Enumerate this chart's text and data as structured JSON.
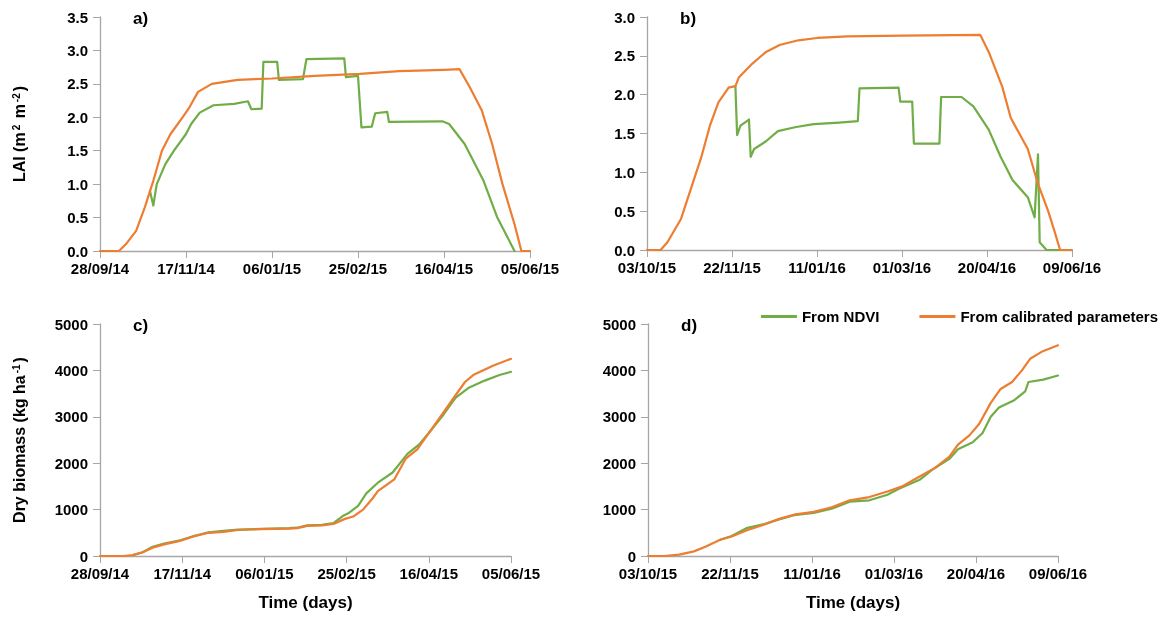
{
  "chart_data": [
    {
      "type": "line",
      "title": "a)",
      "ylabel": "LAI (m$^{2}$ m$^{-2}$)",
      "legend": false,
      "xlim": [
        "2014-09-28",
        "2015-06-05"
      ],
      "xticks": [
        {
          "value": "2014-09-28",
          "label": "28/09/14"
        },
        {
          "value": "2014-11-17",
          "label": "17/11/14"
        },
        {
          "value": "2015-01-06",
          "label": "06/01/15"
        },
        {
          "value": "2015-02-25",
          "label": "25/02/15"
        },
        {
          "value": "2015-04-16",
          "label": "16/04/15"
        },
        {
          "value": "2015-06-05",
          "label": "05/06/15"
        }
      ],
      "ylim": [
        0,
        3.5
      ],
      "yticks": [
        {
          "value": 0,
          "label": "0.0"
        },
        {
          "value": 0.5,
          "label": "0.5"
        },
        {
          "value": 1,
          "label": "1.0"
        },
        {
          "value": 1.5,
          "label": "1.5"
        },
        {
          "value": 2,
          "label": "2.0"
        },
        {
          "value": 2.5,
          "label": "2.5"
        },
        {
          "value": 3,
          "label": "3.0"
        },
        {
          "value": 3.5,
          "label": "3.5"
        }
      ],
      "series": [
        {
          "color": "#70ad47",
          "x": [
            "2014-10-27",
            "2014-10-29",
            "2014-10-31",
            "2014-11-05",
            "2014-11-10",
            "2014-11-17",
            "2014-11-20",
            "2014-11-25",
            "2014-12-03",
            "2014-12-15",
            "2014-12-23",
            "2014-12-25",
            "2014-12-31",
            "2015-01-01",
            "2015-01-09",
            "2015-01-10",
            "2015-01-24",
            "2015-01-26",
            "2015-02-17",
            "2015-02-18",
            "2015-02-25",
            "2015-02-27",
            "2015-03-05",
            "2015-03-07",
            "2015-03-14",
            "2015-03-15",
            "2015-04-15",
            "2015-04-19",
            "2015-04-28",
            "2015-05-09",
            "2015-05-17",
            "2015-05-27"
          ],
          "values": [
            0.9,
            0.68,
            1.0,
            1.3,
            1.5,
            1.75,
            1.9,
            2.07,
            2.18,
            2.2,
            2.24,
            2.12,
            2.13,
            2.83,
            2.83,
            2.56,
            2.57,
            2.87,
            2.88,
            2.6,
            2.62,
            1.85,
            1.86,
            2.06,
            2.08,
            1.93,
            1.94,
            1.9,
            1.6,
            1.05,
            0.5,
            0
          ]
        },
        {
          "color": "#ed7d31",
          "x": [
            "2014-09-28",
            "2014-10-09",
            "2014-10-13",
            "2014-10-19",
            "2014-10-24",
            "2014-10-29",
            "2014-11-03",
            "2014-11-08",
            "2014-11-15",
            "2014-11-19",
            "2014-11-24",
            "2014-12-02",
            "2014-12-17",
            "2015-01-06",
            "2015-01-31",
            "2015-02-26",
            "2015-03-21",
            "2015-04-16",
            "2015-04-25",
            "2015-05-01",
            "2015-05-08",
            "2015-05-14",
            "2015-05-20",
            "2015-05-27",
            "2015-05-31",
            "2015-06-05"
          ],
          "values": [
            0,
            0,
            0.1,
            0.3,
            0.65,
            1.05,
            1.5,
            1.75,
            2.0,
            2.15,
            2.38,
            2.5,
            2.56,
            2.58,
            2.62,
            2.65,
            2.69,
            2.71,
            2.72,
            2.45,
            2.1,
            1.6,
            1.0,
            0.4,
            0,
            0
          ]
        }
      ]
    },
    {
      "type": "line",
      "title": "b)",
      "legend": false,
      "xlim": [
        "2015-10-03",
        "2016-06-09"
      ],
      "xticks": [
        {
          "value": "2015-10-03",
          "label": "03/10/15"
        },
        {
          "value": "2015-11-22",
          "label": "22/11/15"
        },
        {
          "value": "2016-01-11",
          "label": "11/01/16"
        },
        {
          "value": "2016-03-01",
          "label": "01/03/16"
        },
        {
          "value": "2016-04-20",
          "label": "20/04/16"
        },
        {
          "value": "2016-06-09",
          "label": "09/06/16"
        }
      ],
      "ylim": [
        0,
        3
      ],
      "yticks": [
        {
          "value": 0,
          "label": "0.0"
        },
        {
          "value": 0.5,
          "label": "0.5"
        },
        {
          "value": 1,
          "label": "1.0"
        },
        {
          "value": 1.5,
          "label": "1.5"
        },
        {
          "value": 2,
          "label": "2.0"
        },
        {
          "value": 2.5,
          "label": "2.5"
        },
        {
          "value": 3,
          "label": "3.0"
        }
      ],
      "series": [
        {
          "color": "#70ad47",
          "x": [
            "2015-11-24",
            "2015-11-25",
            "2015-11-27",
            "2015-12-02",
            "2015-12-03",
            "2015-12-05",
            "2015-12-12",
            "2015-12-19",
            "2015-12-29",
            "2016-01-09",
            "2016-01-24",
            "2016-02-04",
            "2016-02-05",
            "2016-02-28",
            "2016-02-29",
            "2016-03-07",
            "2016-03-08",
            "2016-03-23",
            "2016-03-24",
            "2016-04-05",
            "2016-04-12",
            "2016-04-21",
            "2016-04-28",
            "2016-05-05",
            "2016-05-14",
            "2016-05-18",
            "2016-05-20",
            "2016-05-21",
            "2016-05-25",
            "2016-06-01"
          ],
          "values": [
            2.11,
            1.48,
            1.6,
            1.68,
            1.2,
            1.3,
            1.4,
            1.53,
            1.58,
            1.62,
            1.64,
            1.66,
            2.08,
            2.09,
            1.91,
            1.91,
            1.37,
            1.37,
            1.97,
            1.97,
            1.85,
            1.55,
            1.2,
            0.9,
            0.68,
            0.42,
            1.23,
            0.1,
            0,
            0
          ]
        },
        {
          "color": "#ed7d31",
          "x": [
            "2015-10-03",
            "2015-10-11",
            "2015-10-15",
            "2015-10-23",
            "2015-10-29",
            "2015-11-04",
            "2015-11-09",
            "2015-11-14",
            "2015-11-20",
            "2015-11-24",
            "2015-11-26",
            "2015-12-04",
            "2015-12-12",
            "2015-12-20",
            "2015-12-31",
            "2016-01-11",
            "2016-01-29",
            "2016-03-01",
            "2016-04-16",
            "2016-04-21",
            "2016-04-29",
            "2016-05-04",
            "2016-05-14",
            "2016-05-20",
            "2016-05-26",
            "2016-05-30",
            "2016-06-02",
            "2016-06-09"
          ],
          "values": [
            0,
            0,
            0.1,
            0.4,
            0.8,
            1.2,
            1.6,
            1.9,
            2.09,
            2.11,
            2.22,
            2.4,
            2.55,
            2.64,
            2.7,
            2.73,
            2.75,
            2.76,
            2.77,
            2.55,
            2.1,
            1.7,
            1.3,
            0.85,
            0.5,
            0.22,
            0,
            0
          ]
        }
      ]
    },
    {
      "type": "line",
      "title": "c)",
      "xlabel": "Time (days)",
      "ylabel": "Dry biomass (kg ha$^{-1}$)",
      "legend": false,
      "xlim": [
        "2014-09-28",
        "2015-06-05"
      ],
      "xticks": [
        {
          "value": "2014-09-28",
          "label": "28/09/14"
        },
        {
          "value": "2014-11-17",
          "label": "17/11/14"
        },
        {
          "value": "2015-01-06",
          "label": "06/01/15"
        },
        {
          "value": "2015-02-25",
          "label": "25/02/15"
        },
        {
          "value": "2015-04-16",
          "label": "16/04/15"
        },
        {
          "value": "2015-06-05",
          "label": "05/06/15"
        }
      ],
      "ylim": [
        0,
        5000
      ],
      "yticks": [
        0,
        1000,
        2000,
        3000,
        4000,
        5000
      ],
      "series": [
        {
          "color": "#70ad47",
          "x": [
            "2014-10-18",
            "2014-10-24",
            "2014-10-30",
            "2014-11-06",
            "2014-11-15",
            "2014-11-24",
            "2014-12-03",
            "2014-12-12",
            "2014-12-21",
            "2015-01-21",
            "2015-01-26",
            "2015-02-01",
            "2015-02-10",
            "2015-02-17",
            "2015-02-23",
            "2015-02-26",
            "2015-03-04",
            "2015-03-09",
            "2015-03-16",
            "2015-03-25",
            "2015-04-03",
            "2015-04-10",
            "2015-04-16",
            "2015-04-25",
            "2015-05-02",
            "2015-05-10",
            "2015-05-20",
            "2015-05-29",
            "2015-06-05"
          ],
          "values": [
            20,
            80,
            200,
            270,
            330,
            430,
            510,
            540,
            570,
            600,
            610,
            660,
            670,
            710,
            870,
            920,
            1080,
            1350,
            1580,
            1800,
            2200,
            2400,
            2650,
            3050,
            3400,
            3620,
            3780,
            3900,
            3970
          ]
        },
        {
          "color": "#ed7d31",
          "x": [
            "2014-09-28",
            "2014-10-12",
            "2014-10-18",
            "2014-10-24",
            "2014-10-30",
            "2014-11-06",
            "2014-11-15",
            "2014-11-24",
            "2014-12-03",
            "2014-12-12",
            "2014-12-21",
            "2015-01-03",
            "2015-01-21",
            "2015-01-26",
            "2015-02-01",
            "2015-02-10",
            "2015-02-17",
            "2015-02-24",
            "2015-03-01",
            "2015-03-07",
            "2015-03-13",
            "2015-03-16",
            "2015-03-26",
            "2015-04-02",
            "2015-04-09",
            "2015-04-15",
            "2015-04-23",
            "2015-05-01",
            "2015-05-08",
            "2015-05-13",
            "2015-05-25",
            "2015-06-05"
          ],
          "values": [
            0,
            0,
            20,
            80,
            180,
            250,
            320,
            420,
            500,
            520,
            560,
            580,
            590,
            600,
            650,
            660,
            690,
            800,
            850,
            1000,
            1250,
            1400,
            1650,
            2100,
            2300,
            2600,
            3000,
            3400,
            3750,
            3900,
            4100,
            4250
          ]
        }
      ]
    },
    {
      "type": "line",
      "title": "d)",
      "xlabel": "Time (days)",
      "legend": "top right",
      "xlim": [
        "2015-10-03",
        "2016-06-09"
      ],
      "xticks": [
        {
          "value": "2015-10-03",
          "label": "03/10/15"
        },
        {
          "value": "2015-11-22",
          "label": "22/11/15"
        },
        {
          "value": "2016-01-11",
          "label": "11/01/16"
        },
        {
          "value": "2016-03-01",
          "label": "01/03/16"
        },
        {
          "value": "2016-04-20",
          "label": "20/04/16"
        },
        {
          "value": "2016-06-09",
          "label": "09/06/16"
        }
      ],
      "ylim": [
        0,
        5000
      ],
      "yticks": [
        0,
        1000,
        2000,
        3000,
        4000,
        5000
      ],
      "series": [
        {
          "name": "From NDVI",
          "color": "#70ad47",
          "x": [
            "2015-11-16",
            "2015-11-23",
            "2015-12-02",
            "2015-12-13",
            "2015-12-22",
            "2015-12-31",
            "2016-01-12",
            "2016-01-23",
            "2016-02-03",
            "2016-02-15",
            "2016-02-26",
            "2016-03-04",
            "2016-03-17",
            "2016-03-24",
            "2016-04-04",
            "2016-04-09",
            "2016-04-18",
            "2016-04-24",
            "2016-04-29",
            "2016-05-04",
            "2016-05-13",
            "2016-05-20",
            "2016-05-22",
            "2016-05-31",
            "2016-06-09"
          ],
          "values": [
            350,
            430,
            600,
            690,
            790,
            880,
            930,
            1020,
            1170,
            1200,
            1320,
            1450,
            1650,
            1850,
            2100,
            2300,
            2450,
            2650,
            3000,
            3200,
            3350,
            3550,
            3750,
            3800,
            3890
          ]
        },
        {
          "name": "From calibrated parameters",
          "color": "#ed7d31",
          "x": [
            "2015-10-03",
            "2015-10-13",
            "2015-10-22",
            "2015-10-31",
            "2015-11-07",
            "2015-11-16",
            "2015-11-23",
            "2015-12-02",
            "2015-12-13",
            "2015-12-22",
            "2015-12-31",
            "2016-01-12",
            "2016-01-23",
            "2016-02-03",
            "2016-02-15",
            "2016-02-26",
            "2016-03-06",
            "2016-03-15",
            "2016-03-26",
            "2016-04-04",
            "2016-04-09",
            "2016-04-16",
            "2016-04-22",
            "2016-04-29",
            "2016-05-05",
            "2016-05-12",
            "2016-05-18",
            "2016-05-23",
            "2016-05-30",
            "2016-06-09"
          ],
          "values": [
            0,
            0,
            30,
            100,
            200,
            350,
            420,
            550,
            680,
            800,
            890,
            950,
            1050,
            1200,
            1270,
            1390,
            1500,
            1680,
            1900,
            2150,
            2400,
            2600,
            2850,
            3300,
            3600,
            3750,
            4000,
            4250,
            4400,
            4540
          ]
        }
      ]
    }
  ]
}
